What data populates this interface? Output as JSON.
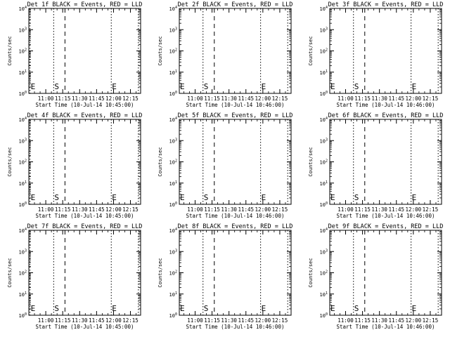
{
  "chart_data": [
    {
      "type": "line",
      "title": "Det 1f BLACK = Events, RED = LLD",
      "xlabel": "Start Time (10-Jul-14 10:45:00)",
      "ylabel": "Counts/sec"
    },
    {
      "type": "line",
      "title": "Det 2f BLACK = Events, RED = LLD",
      "xlabel": "Start Time (10-Jul-14 10:46:00)",
      "ylabel": "Counts/sec"
    },
    {
      "type": "line",
      "title": "Det 3f BLACK = Events, RED = LLD",
      "xlabel": "Start Time (10-Jul-14 10:46:00)",
      "ylabel": "Counts/sec"
    },
    {
      "type": "line",
      "title": "Det 4f BLACK = Events, RED = LLD",
      "xlabel": "Start Time (10-Jul-14 10:45:00)",
      "ylabel": "Counts/sec"
    },
    {
      "type": "line",
      "title": "Det 5f BLACK = Events, RED = LLD",
      "xlabel": "Start Time (10-Jul-14 10:46:00)",
      "ylabel": "Counts/sec"
    },
    {
      "type": "line",
      "title": "Det 6f BLACK = Events, RED = LLD",
      "xlabel": "Start Time (10-Jul-14 10:46:00)",
      "ylabel": "Counts/sec"
    },
    {
      "type": "line",
      "title": "Det 7f BLACK = Events, RED = LLD",
      "xlabel": "Start Time (10-Jul-14 10:45:00)",
      "ylabel": "Counts/sec"
    },
    {
      "type": "line",
      "title": "Det 8f BLACK = Events, RED = LLD",
      "xlabel": "Start Time (10-Jul-14 10:46:00)",
      "ylabel": "Counts/sec"
    },
    {
      "type": "line",
      "title": "Det 9f BLACK = Events, RED = LLD",
      "xlabel": "Start Time (10-Jul-14 10:46:00)",
      "ylabel": "Counts/sec"
    }
  ],
  "shared": {
    "x_ticks": [
      "11:00",
      "11:15",
      "11:30",
      "11:45",
      "12:00",
      "12:15"
    ],
    "x_tick_minutes": [
      660,
      675,
      690,
      705,
      720,
      735
    ],
    "y_ticks": [
      {
        "base": "10",
        "exp": "0"
      },
      {
        "base": "10",
        "exp": "1"
      },
      {
        "base": "10",
        "exp": "2"
      },
      {
        "base": "10",
        "exp": "3"
      },
      {
        "base": "10",
        "exp": "4"
      }
    ],
    "ylim": [
      1,
      10000
    ],
    "y_scale": "log",
    "x_start_minutes": [
      645,
      646,
      646
    ],
    "x_end_minutes": [
      744,
      745,
      745
    ],
    "markers": [
      {
        "label": "E",
        "minutes": 646,
        "style": "dotted"
      },
      {
        "label": "S",
        "minutes": 667,
        "style": "dotted"
      },
      {
        "label": "",
        "minutes": 677,
        "style": "dashed"
      },
      {
        "label": "E",
        "minutes": 718,
        "style": "dotted"
      },
      {
        "label": "",
        "minutes": 742,
        "style": "dotted"
      }
    ]
  }
}
